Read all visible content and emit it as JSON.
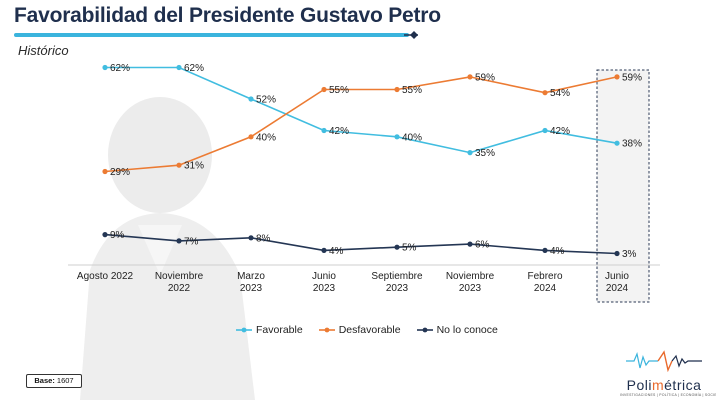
{
  "header": {
    "title": "Favorabilidad del Presidente Gustavo Petro",
    "subtitle": "Histórico"
  },
  "colors": {
    "favorable": "#41bde0",
    "desfavorable": "#ec7b33",
    "no_lo_conoce": "#243654",
    "title_rule": "#3ab4dd",
    "title_navy": "#1f2f4d"
  },
  "chart_data": {
    "type": "line",
    "categories": [
      [
        "Agosto 2022"
      ],
      [
        "Noviembre",
        "2022"
      ],
      [
        "Marzo",
        "2023"
      ],
      [
        "Junio",
        "2023"
      ],
      [
        "Septiembre",
        "2023"
      ],
      [
        "Noviembre",
        "2023"
      ],
      [
        "Febrero",
        "2024"
      ],
      [
        "Junio",
        "2024"
      ]
    ],
    "highlighted_category": 7,
    "ylim": [
      0,
      65
    ],
    "grid": false,
    "legend_position": "bottom",
    "series": [
      {
        "name": "Favorable",
        "color": "#41bde0",
        "values": [
          62,
          62,
          52,
          42,
          40,
          35,
          42,
          38
        ],
        "labels": [
          "62%",
          "62%",
          "52%",
          "42%",
          "40%",
          "35%",
          "42%",
          "38%"
        ]
      },
      {
        "name": "Desfavorable",
        "color": "#ec7b33",
        "values": [
          29,
          31,
          40,
          55,
          55,
          59,
          54,
          59
        ],
        "labels": [
          "29%",
          "31%",
          "40%",
          "55%",
          "55%",
          "59%",
          "54%",
          "59%"
        ]
      },
      {
        "name": "No lo conoce",
        "color": "#243654",
        "values": [
          9,
          7,
          8,
          4,
          5,
          6,
          4,
          3
        ],
        "labels": [
          "9%",
          "7%",
          "8%",
          "4%",
          "5%",
          "6%",
          "4%",
          "3%"
        ]
      }
    ]
  },
  "legend": {
    "items": [
      {
        "label": "Favorable",
        "color": "#41bde0"
      },
      {
        "label": "Desfavorable",
        "color": "#ec7b33"
      },
      {
        "label": "No lo conoce",
        "color": "#243654"
      }
    ]
  },
  "footer": {
    "base_label": "Base:",
    "base_value": "1607",
    "logo_pre": "Poli",
    "logo_accent": "m",
    "logo_post": "étrica",
    "logo_tagline": "INVESTIGACIONES | POLÍTICA | ECONOMÍA | SOCIEDAD"
  }
}
